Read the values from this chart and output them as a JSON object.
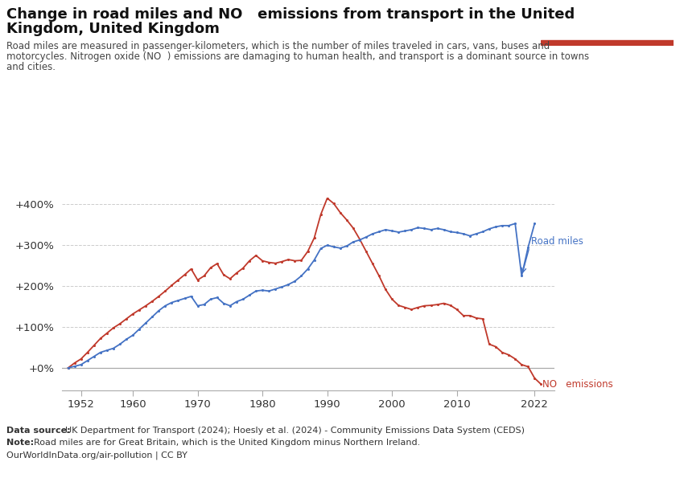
{
  "road_miles_years": [
    1950,
    1951,
    1952,
    1953,
    1954,
    1955,
    1956,
    1957,
    1958,
    1959,
    1960,
    1961,
    1962,
    1963,
    1964,
    1965,
    1966,
    1967,
    1968,
    1969,
    1970,
    1971,
    1972,
    1973,
    1974,
    1975,
    1976,
    1977,
    1978,
    1979,
    1980,
    1981,
    1982,
    1983,
    1984,
    1985,
    1986,
    1987,
    1988,
    1989,
    1990,
    1991,
    1992,
    1993,
    1994,
    1995,
    1996,
    1997,
    1998,
    1999,
    2000,
    2001,
    2002,
    2003,
    2004,
    2005,
    2006,
    2007,
    2008,
    2009,
    2010,
    2011,
    2012,
    2013,
    2014,
    2015,
    2016,
    2017,
    2018,
    2019,
    2020,
    2021,
    2022
  ],
  "road_miles_values": [
    0,
    4,
    8,
    18,
    28,
    38,
    43,
    48,
    58,
    70,
    80,
    95,
    110,
    125,
    140,
    152,
    160,
    165,
    170,
    175,
    152,
    155,
    168,
    172,
    158,
    152,
    162,
    168,
    178,
    188,
    190,
    188,
    193,
    198,
    204,
    212,
    225,
    242,
    264,
    292,
    300,
    296,
    293,
    298,
    308,
    313,
    320,
    328,
    333,
    338,
    335,
    332,
    335,
    338,
    343,
    341,
    338,
    341,
    338,
    333,
    331,
    328,
    323,
    328,
    333,
    340,
    345,
    348,
    348,
    353,
    225,
    295,
    353
  ],
  "nox_years": [
    1950,
    1951,
    1952,
    1953,
    1954,
    1955,
    1956,
    1957,
    1958,
    1959,
    1960,
    1961,
    1962,
    1963,
    1964,
    1965,
    1966,
    1967,
    1968,
    1969,
    1970,
    1971,
    1972,
    1973,
    1974,
    1975,
    1976,
    1977,
    1978,
    1979,
    1980,
    1981,
    1982,
    1983,
    1984,
    1985,
    1986,
    1987,
    1988,
    1989,
    1990,
    1991,
    1992,
    1993,
    1994,
    1995,
    1996,
    1997,
    1998,
    1999,
    2000,
    2001,
    2002,
    2003,
    2004,
    2005,
    2006,
    2007,
    2008,
    2009,
    2010,
    2011,
    2012,
    2013,
    2014,
    2015,
    2016,
    2017,
    2018,
    2019,
    2020,
    2021,
    2022,
    2023
  ],
  "nox_values": [
    0,
    12,
    22,
    38,
    55,
    72,
    85,
    98,
    108,
    120,
    132,
    142,
    152,
    163,
    175,
    188,
    202,
    215,
    228,
    242,
    215,
    225,
    245,
    255,
    228,
    218,
    232,
    244,
    262,
    275,
    262,
    258,
    256,
    260,
    265,
    262,
    263,
    285,
    318,
    375,
    415,
    402,
    380,
    362,
    342,
    315,
    285,
    255,
    225,
    192,
    168,
    153,
    148,
    143,
    148,
    152,
    153,
    155,
    158,
    153,
    143,
    128,
    128,
    122,
    120,
    58,
    52,
    38,
    32,
    22,
    8,
    3,
    -25,
    -40
  ],
  "road_miles_color": "#4472c4",
  "nox_color": "#c0392b",
  "background_color": "#ffffff",
  "grid_color": "#cccccc",
  "yticks": [
    0,
    100,
    200,
    300,
    400
  ],
  "ytick_labels": [
    "+0%",
    "+100%",
    "+200%",
    "+300%",
    "+400%"
  ],
  "xticks": [
    1952,
    1960,
    1970,
    1980,
    1990,
    2000,
    2010,
    2022
  ],
  "ylim": [
    -55,
    440
  ],
  "xlim": [
    1949,
    2025
  ],
  "data_source_bold": "Data source: ",
  "data_source_rest": "UK Department for Transport (2024); Hoesly et al. (2024) - Community Emissions Data System (CEDS)",
  "note_bold": "Note: ",
  "note_rest": "Road miles are for Great Britain, which is the United Kingdom minus Northern Ireland.",
  "url": "OurWorldInData.org/air-pollution | CC BY",
  "road_miles_label": "Road miles",
  "nox_label": "NO   emissions",
  "owid_box_color": "#1a3a5c",
  "owid_red": "#c0392b",
  "title": "Change in road miles and NO   emissions from transport in the United\nKingdom, United Kingdom",
  "subtitle_line1": "Road miles are measured in passenger-kilometers, which is the number of miles traveled in cars, vans, buses and",
  "subtitle_line2": "motorcycles. Nitrogen oxide (NO  ) emissions are damaging to human health, and transport is a dominant source in towns",
  "subtitle_line3": "and cities."
}
